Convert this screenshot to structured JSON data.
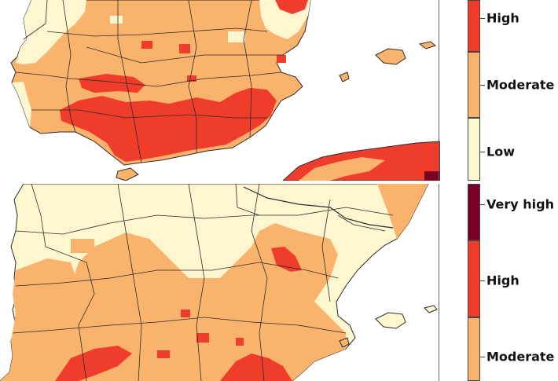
{
  "maps": [
    {
      "id": "top",
      "legend": [
        {
          "label": "High",
          "color": "#f03c2a",
          "level": "high"
        },
        {
          "label": "Moderate",
          "color": "#fab36c",
          "level": "moderate"
        },
        {
          "label": "Low",
          "color": "#fdf6cf",
          "level": "low"
        }
      ]
    },
    {
      "id": "bottom",
      "legend": [
        {
          "label": "Very high",
          "color": "#7a0025",
          "level": "very-high"
        },
        {
          "label": "High",
          "color": "#f03c2a",
          "level": "high"
        },
        {
          "label": "Moderate",
          "color": "#fab36c",
          "level": "moderate"
        }
      ]
    }
  ],
  "colors": {
    "sea": "#ffffff",
    "land_low": "#fdf6cf",
    "land_moderate": "#fab36c",
    "land_high": "#f03c2a",
    "land_very_high": "#7a0025",
    "border": "#2b2b2b"
  }
}
